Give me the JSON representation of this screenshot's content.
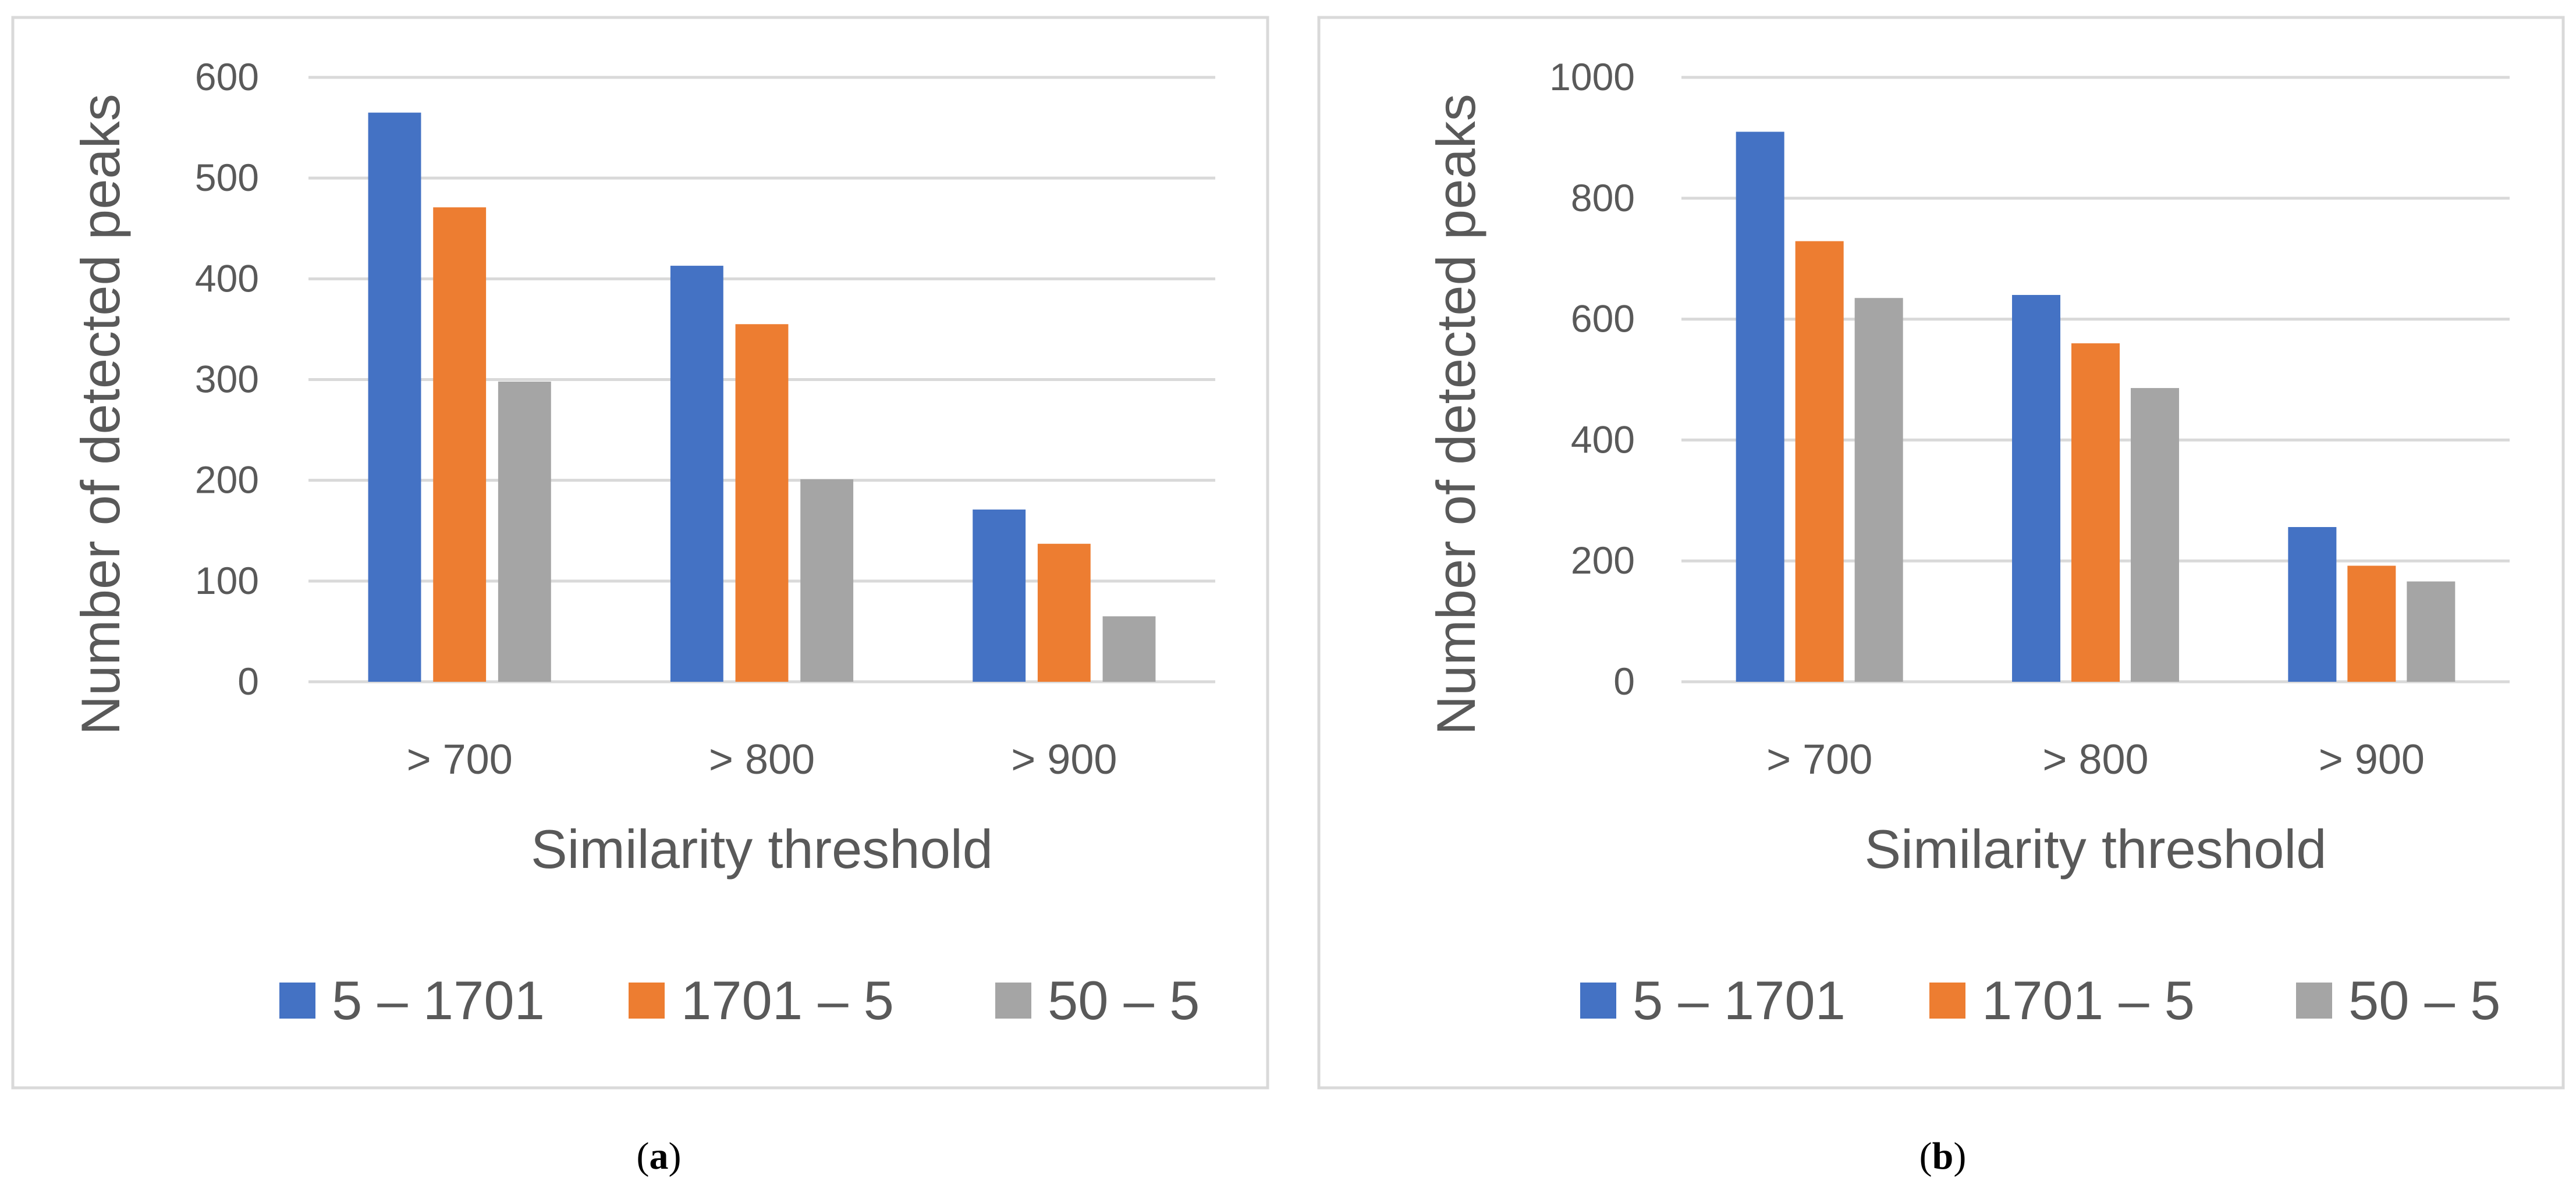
{
  "colors": {
    "series": [
      "#4472C4",
      "#ED7D31",
      "#A5A5A5"
    ],
    "text": "#595959",
    "grid": "#D9D9D9",
    "border": "#D9D9D9"
  },
  "chart_data": [
    {
      "type": "bar",
      "panel_label": "a",
      "categories": [
        "> 700",
        "> 800",
        "> 900"
      ],
      "series": [
        {
          "name": "5 – 1701",
          "values": [
            565,
            413,
            171
          ]
        },
        {
          "name": "1701 – 5",
          "values": [
            471,
            355,
            137
          ]
        },
        {
          "name": "50 – 5",
          "values": [
            298,
            201,
            65
          ]
        }
      ],
      "yticks": [
        0,
        100,
        200,
        300,
        400,
        500,
        600
      ],
      "ylim": [
        0,
        600
      ],
      "xlabel": "Similarity threshold",
      "ylabel": "Number of detected peaks",
      "grid": true,
      "legend": "bottom"
    },
    {
      "type": "bar",
      "panel_label": "b",
      "categories": [
        "> 700",
        "> 800",
        "> 900"
      ],
      "series": [
        {
          "name": "5 – 1701",
          "values": [
            910,
            640,
            256
          ]
        },
        {
          "name": "1701 – 5",
          "values": [
            729,
            560,
            192
          ]
        },
        {
          "name": "50 – 5",
          "values": [
            635,
            486,
            166
          ]
        }
      ],
      "yticks": [
        0,
        200,
        400,
        600,
        800,
        1000
      ],
      "ylim": [
        0,
        1000
      ],
      "xlabel": "Similarity threshold",
      "ylabel": "Number of detected peaks",
      "grid": true,
      "legend": "bottom"
    }
  ]
}
